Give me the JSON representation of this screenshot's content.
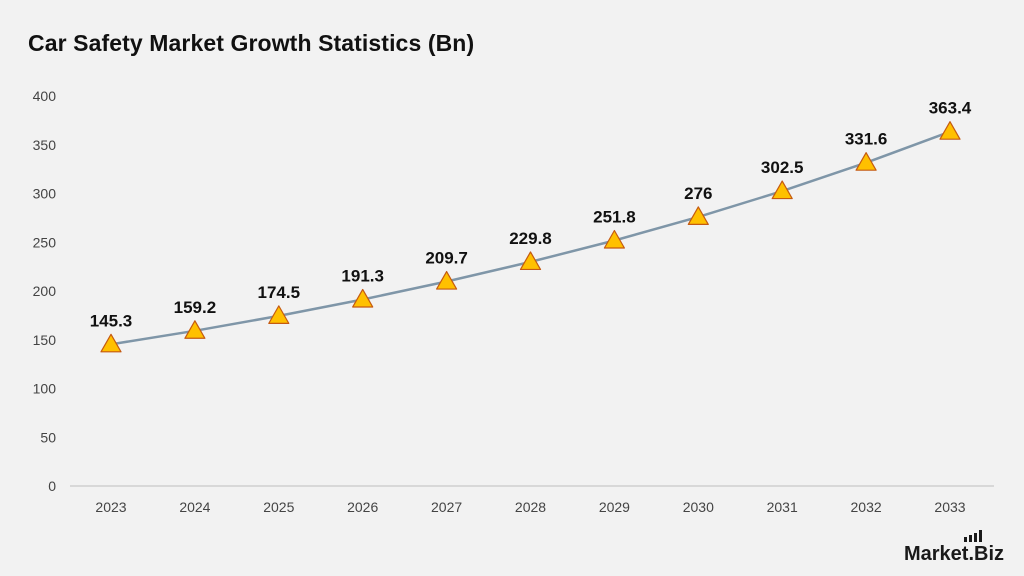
{
  "title": "Car Safety Market Growth Statistics (Bn)",
  "brand": "Market.Biz",
  "colors": {
    "line": "#7f96a8",
    "marker_fill": "#ffc000",
    "marker_stroke": "#c55a11",
    "axis": "#bfbfbf"
  },
  "chart_data": {
    "type": "line",
    "title": "Car Safety Market Growth Statistics (Bn)",
    "xlabel": "",
    "ylabel": "",
    "categories": [
      "2023",
      "2024",
      "2025",
      "2026",
      "2027",
      "2028",
      "2029",
      "2030",
      "2031",
      "2032",
      "2033"
    ],
    "series": [
      {
        "values": [
          145.3,
          159.2,
          174.5,
          191.3,
          209.7,
          229.8,
          251.8,
          276,
          302.5,
          331.6,
          363.4
        ]
      }
    ],
    "ylim": [
      0,
      400
    ],
    "yticks": [
      0,
      50,
      100,
      150,
      200,
      250,
      300,
      350,
      400
    ],
    "grid": false,
    "marker": "triangle",
    "data_labels": true
  }
}
